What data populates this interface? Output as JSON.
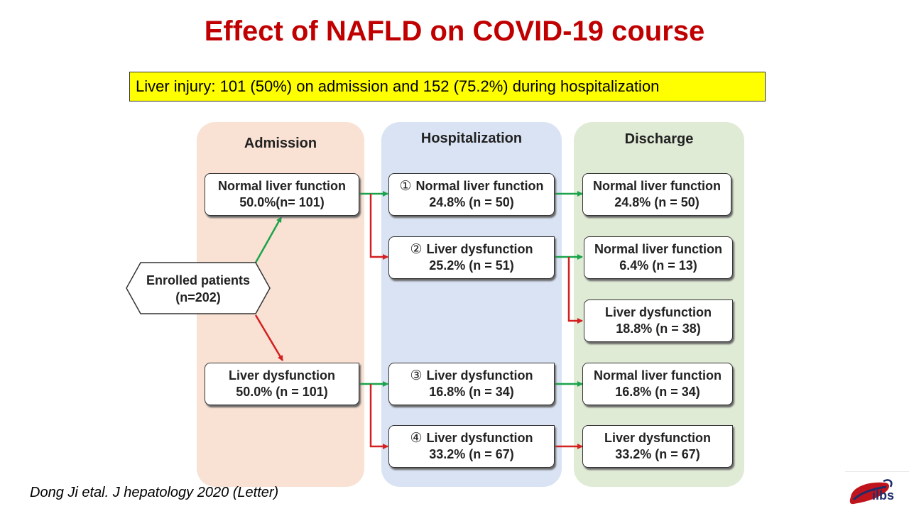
{
  "title": "Effect of NAFLD on COVID-19 course",
  "highlight": "Liver injury: 101 (50%) on admission and 152 (75.2%) during hospitalization",
  "columns": {
    "admission": "Admission",
    "hospitalization": "Hospitalization",
    "discharge": "Discharge"
  },
  "enrolled": {
    "line1": "Enrolled patients",
    "line2": "(n=202)"
  },
  "admission_nodes": [
    {
      "line1": "Normal liver function",
      "line2": "50.0%(n= 101)"
    },
    {
      "line1": "Liver dysfunction",
      "line2": "50.0% (n = 101)"
    }
  ],
  "hospitalization_nodes": [
    {
      "marker": "①",
      "line1": "Normal liver function",
      "line2": "24.8% (n = 50)"
    },
    {
      "marker": "②",
      "line1": "Liver dysfunction",
      "line2": "25.2% (n = 51)"
    },
    {
      "marker": "③",
      "line1": "Liver dysfunction",
      "line2": "16.8% (n = 34)"
    },
    {
      "marker": "④",
      "line1": "Liver dysfunction",
      "line2": "33.2% (n = 67)"
    }
  ],
  "discharge_nodes": [
    {
      "line1": "Normal liver function",
      "line2": "24.8% (n = 50)"
    },
    {
      "line1": "Normal liver function",
      "line2": "6.4% (n = 13)"
    },
    {
      "line1": "Liver dysfunction",
      "line2": "18.8% (n = 38)"
    },
    {
      "line1": "Normal liver function",
      "line2": "16.8% (n = 34)"
    },
    {
      "line1": "Liver dysfunction",
      "line2": "33.2% (n = 67)"
    }
  ],
  "citation": "Dong Ji etal. J hepatology 2020 (Letter)",
  "logo": {
    "text": "ilbs",
    "icon": "liver-logo-icon"
  },
  "colors": {
    "title": "#c00000",
    "highlight": "#ffff00",
    "green_arrow": "#1aa34a",
    "red_arrow": "#d32020",
    "admission_panel": "#f9e1d4",
    "hospitalization_panel": "#d9e3f3",
    "discharge_panel": "#e0ebd6"
  }
}
